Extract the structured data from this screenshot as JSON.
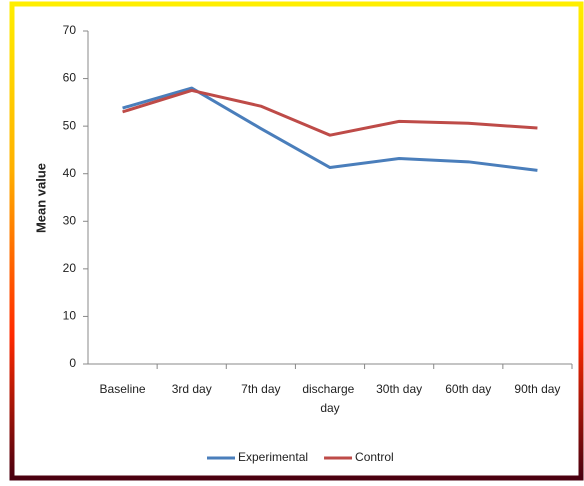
{
  "chart_data": {
    "type": "line",
    "categories": [
      "Baseline",
      "3rd day",
      "7th day",
      "discharge day",
      "30th day",
      "60th day",
      "90th day"
    ],
    "series": [
      {
        "name": "Experimental",
        "color": "#4a7ebb",
        "values": [
          53.8,
          58,
          49.5,
          41.3,
          43.2,
          42.5,
          40.7
        ]
      },
      {
        "name": "Control",
        "color": "#be4b48",
        "values": [
          53,
          57.5,
          54.2,
          48.1,
          51,
          50.6,
          49.6
        ]
      }
    ],
    "y_label": "Mean value",
    "ylim": [
      0,
      70
    ],
    "yticks": [
      0,
      10,
      20,
      30,
      40,
      50,
      60,
      70
    ],
    "grid": false,
    "legend": "bottom"
  }
}
